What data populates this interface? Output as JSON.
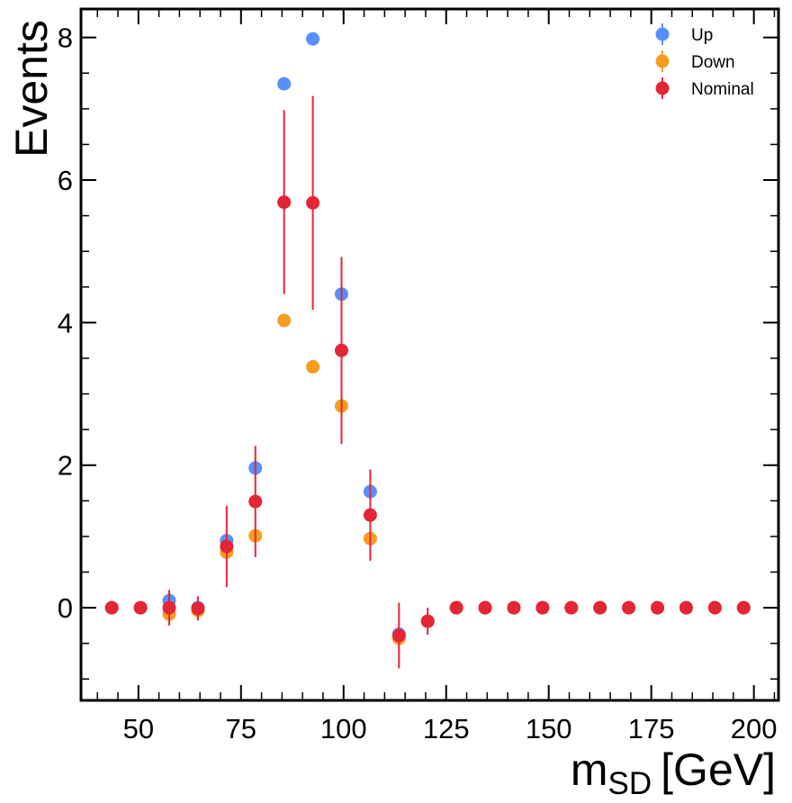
{
  "chart_data": {
    "type": "scatter",
    "title": "",
    "xlabel": "m",
    "xlabel_sub": "SD",
    "xlabel_unit": "[GeV]",
    "ylabel": "Events",
    "xlim": [
      36,
      206
    ],
    "ylim": [
      -1.3,
      8.4
    ],
    "xticks": [
      50,
      75,
      100,
      125,
      150,
      175,
      200
    ],
    "yticks": [
      0,
      2,
      4,
      6,
      8
    ],
    "grid": false,
    "legend_position": "top-right",
    "x": [
      43.5,
      50.5,
      57.5,
      64.5,
      71.5,
      78.5,
      85.5,
      92.5,
      99.5,
      106.5,
      113.5,
      120.5,
      127.5,
      134.5,
      141.5,
      148.5,
      155.5,
      162.5,
      169.5,
      176.5,
      183.5,
      190.5,
      197.5
    ],
    "series": [
      {
        "name": "Up",
        "color": "#5790fc",
        "values": [
          0,
          0,
          0.1,
          0.0,
          0.94,
          1.96,
          7.35,
          7.98,
          4.4,
          1.63,
          -0.37,
          -0.19,
          0,
          0,
          0,
          0,
          0,
          0,
          0,
          0,
          0,
          0,
          0
        ],
        "errors": [
          0,
          0,
          0,
          0,
          0,
          0,
          0,
          0,
          0,
          0,
          0,
          0,
          0,
          0,
          0,
          0,
          0,
          0,
          0,
          0,
          0,
          0,
          0
        ]
      },
      {
        "name": "Down",
        "color": "#f89c20",
        "values": [
          0,
          0,
          -0.09,
          -0.04,
          0.78,
          1.01,
          4.03,
          3.38,
          2.83,
          0.97,
          -0.43,
          -0.19,
          0,
          0,
          0,
          0,
          0,
          0,
          0,
          0,
          0,
          0,
          0
        ],
        "errors": [
          0,
          0,
          0,
          0,
          0,
          0,
          0,
          0,
          0,
          0,
          0,
          0,
          0,
          0,
          0,
          0,
          0,
          0,
          0,
          0,
          0,
          0,
          0
        ]
      },
      {
        "name": "Nominal",
        "color": "#e42536",
        "values": [
          0,
          0,
          0.0,
          -0.01,
          0.86,
          1.49,
          5.69,
          5.68,
          3.61,
          1.3,
          -0.39,
          -0.19,
          0,
          0,
          0,
          0,
          0,
          0,
          0,
          0,
          0,
          0,
          0
        ],
        "errors": [
          0,
          0,
          0.25,
          0.17,
          0.57,
          0.78,
          1.29,
          1.5,
          1.31,
          0.64,
          0.46,
          0.19,
          0,
          0,
          0,
          0,
          0,
          0,
          0,
          0,
          0,
          0,
          0
        ]
      }
    ]
  }
}
